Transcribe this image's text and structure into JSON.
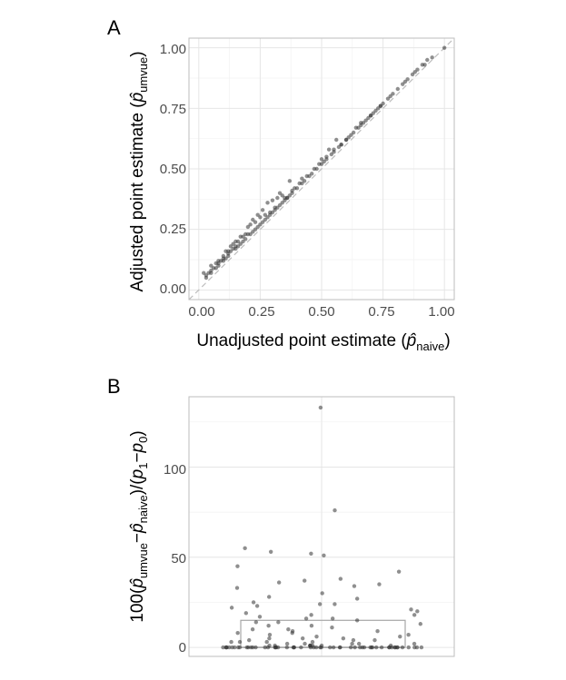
{
  "panel_a": {
    "label": "A",
    "xlabel": "Unadjusted point estimate (",
    "xlabel_sub": "naive",
    "xlabel_end": ")",
    "ylabel": "Adjusted point estimate (",
    "ylabel_sub": "umvue",
    "ylabel_end": ")",
    "hat_symbol": "p̂",
    "xticks": [
      "0.00",
      "0.25",
      "0.50",
      "0.75",
      "1.00"
    ],
    "yticks": [
      "0.00",
      "0.25",
      "0.50",
      "0.75",
      "1.00"
    ]
  },
  "panel_b": {
    "label": "B",
    "ylabel_prefix": "100(",
    "ylabel_p1": "umvue",
    "ylabel_minus": "−",
    "ylabel_p2": "naive",
    "ylabel_mid": ")/(",
    "ylabel_p": "p",
    "ylabel_s1": "1",
    "ylabel_s0": "0",
    "ylabel_end": ")",
    "yticks": [
      "0",
      "50",
      "100"
    ]
  },
  "colors": {
    "point": "#333333",
    "refline": "#bdbdbd",
    "box": "#a6a6a6"
  },
  "chart_data": [
    {
      "type": "scatter",
      "title": "",
      "xlabel": "Unadjusted point estimate (p̂naive)",
      "ylabel": "Adjusted point estimate (p̂umvue)",
      "xlim": [
        -0.04,
        1.04
      ],
      "ylim": [
        -0.04,
        1.04
      ],
      "grid": true,
      "reference_line": "y = x (dashed)",
      "x": [
        0.03,
        0.04,
        0.05,
        0.06,
        0.07,
        0.08,
        0.08,
        0.09,
        0.1,
        0.1,
        0.11,
        0.12,
        0.12,
        0.13,
        0.14,
        0.15,
        0.15,
        0.16,
        0.17,
        0.18,
        0.19,
        0.2,
        0.21,
        0.22,
        0.23,
        0.24,
        0.25,
        0.26,
        0.27,
        0.28,
        0.29,
        0.3,
        0.31,
        0.32,
        0.33,
        0.34,
        0.35,
        0.36,
        0.37,
        0.38,
        0.4,
        0.42,
        0.43,
        0.45,
        0.46,
        0.48,
        0.5,
        0.51,
        0.52,
        0.54,
        0.55,
        0.57,
        0.58,
        0.6,
        0.62,
        0.63,
        0.65,
        0.67,
        0.68,
        0.7,
        0.72,
        0.74,
        0.75,
        0.77,
        0.79,
        0.81,
        0.83,
        0.85,
        0.87,
        0.89,
        0.91,
        0.93,
        0.95,
        1.0,
        0.02,
        0.05,
        0.07,
        0.1,
        0.12,
        0.14,
        0.16,
        0.18,
        0.19,
        0.21,
        0.22,
        0.24,
        0.26,
        0.28,
        0.3,
        0.32,
        0.33,
        0.35,
        0.38,
        0.42,
        0.44,
        0.47,
        0.5,
        0.53,
        0.56,
        0.58,
        0.61,
        0.64,
        0.66,
        0.69,
        0.71,
        0.74,
        0.78,
        0.84,
        0.88,
        0.92,
        0.03,
        0.05,
        0.08,
        0.11,
        0.13,
        0.15,
        0.17,
        0.2,
        0.23,
        0.25,
        0.27,
        0.29,
        0.31,
        0.34,
        0.36,
        0.37,
        0.39,
        0.41,
        0.49,
        0.52,
        0.55,
        0.6,
        0.66,
        0.7,
        0.73
      ],
      "y": [
        0.05,
        0.07,
        0.07,
        0.09,
        0.09,
        0.11,
        0.1,
        0.12,
        0.13,
        0.12,
        0.13,
        0.15,
        0.14,
        0.16,
        0.17,
        0.18,
        0.17,
        0.18,
        0.19,
        0.2,
        0.21,
        0.23,
        0.23,
        0.24,
        0.25,
        0.26,
        0.27,
        0.28,
        0.29,
        0.3,
        0.31,
        0.32,
        0.33,
        0.34,
        0.35,
        0.36,
        0.37,
        0.38,
        0.39,
        0.4,
        0.42,
        0.44,
        0.45,
        0.47,
        0.48,
        0.5,
        0.52,
        0.53,
        0.54,
        0.56,
        0.57,
        0.59,
        0.6,
        0.62,
        0.64,
        0.65,
        0.67,
        0.69,
        0.7,
        0.72,
        0.74,
        0.76,
        0.77,
        0.79,
        0.81,
        0.83,
        0.85,
        0.87,
        0.89,
        0.91,
        0.93,
        0.95,
        0.96,
        1.0,
        0.07,
        0.08,
        0.11,
        0.14,
        0.16,
        0.19,
        0.2,
        0.22,
        0.23,
        0.27,
        0.29,
        0.31,
        0.33,
        0.36,
        0.37,
        0.38,
        0.4,
        0.38,
        0.41,
        0.46,
        0.47,
        0.5,
        0.54,
        0.58,
        0.62,
        0.6,
        0.63,
        0.67,
        0.69,
        0.71,
        0.73,
        0.76,
        0.8,
        0.86,
        0.9,
        0.93,
        0.06,
        0.1,
        0.12,
        0.16,
        0.18,
        0.2,
        0.22,
        0.26,
        0.28,
        0.3,
        0.31,
        0.32,
        0.34,
        0.39,
        0.38,
        0.45,
        0.42,
        0.44,
        0.52,
        0.55,
        0.58,
        0.62,
        0.68,
        0.72,
        0.75
      ]
    },
    {
      "type": "box",
      "title": "",
      "ylabel": "100(p̂umvue−p̂naive)/(p1−p0)",
      "ylim": [
        -5,
        139
      ],
      "grid": true,
      "box": {
        "q1": 0,
        "median": 0,
        "q3": 15,
        "whisker_low": 0,
        "whisker_high": 15
      },
      "points": [
        133,
        76,
        55,
        53,
        52,
        51,
        45,
        42,
        38,
        37,
        36,
        35,
        34,
        33,
        30,
        28,
        27,
        25,
        24,
        24,
        23,
        22,
        21,
        20,
        19,
        18,
        18,
        17,
        16,
        16,
        15,
        14,
        14,
        13,
        12,
        12,
        11,
        10,
        10,
        9,
        9,
        8,
        8,
        7,
        7,
        6,
        6,
        5,
        5,
        5,
        4,
        4,
        4,
        3,
        3,
        3,
        3,
        2,
        2,
        2,
        2,
        2,
        1,
        1,
        1,
        1,
        1,
        1,
        1,
        1,
        0,
        0,
        0,
        0,
        0,
        0,
        0,
        0,
        0,
        0,
        0,
        0,
        0,
        0,
        0,
        0,
        0,
        0,
        0,
        0,
        0,
        0,
        0,
        0,
        0,
        0,
        0,
        0,
        0,
        0,
        0,
        0,
        0,
        0,
        0,
        0,
        0,
        0,
        0,
        0,
        0,
        0,
        0,
        0,
        0,
        0,
        0,
        0,
        0,
        0,
        0,
        0,
        0,
        0,
        0,
        0
      ]
    }
  ]
}
